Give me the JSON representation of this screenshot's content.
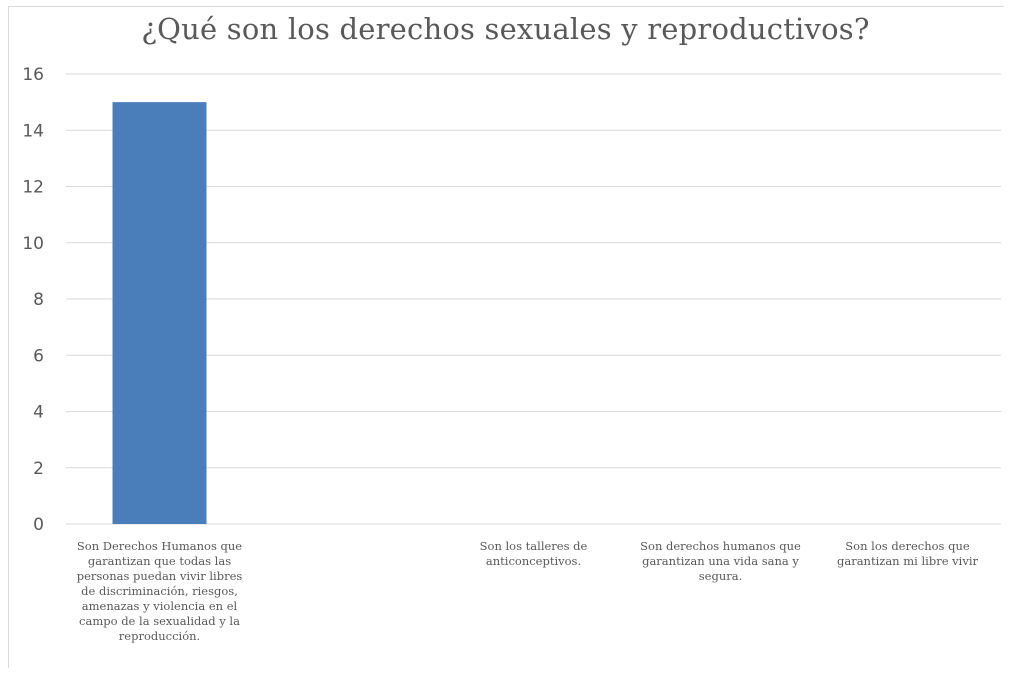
{
  "chart_data": {
    "type": "bar",
    "title": "¿Qué son los derechos sexuales y reproductivos?",
    "xlabel": "",
    "ylabel": "",
    "ylim": [
      0,
      16
    ],
    "yticks": [
      0,
      2,
      4,
      6,
      8,
      10,
      12,
      14,
      16
    ],
    "grid": true,
    "legend": "none",
    "categories": [
      "Son Derechos Humanos que garantizan que todas las personas puedan vivir libres de discriminación, riesgos, amenazas y violencia en el campo de la sexualidad y la reproducción.",
      "",
      "Son los talleres de anticonceptivos.",
      "Son derechos humanos que garantizan una vida sana y segura.",
      "Son los derechos que garantizan mi libre vivir"
    ],
    "values": [
      15,
      0,
      0,
      0,
      0
    ],
    "colors": {
      "bar": "#4a7ebb",
      "grid": "#d9d9d9",
      "text": "#595959"
    }
  }
}
